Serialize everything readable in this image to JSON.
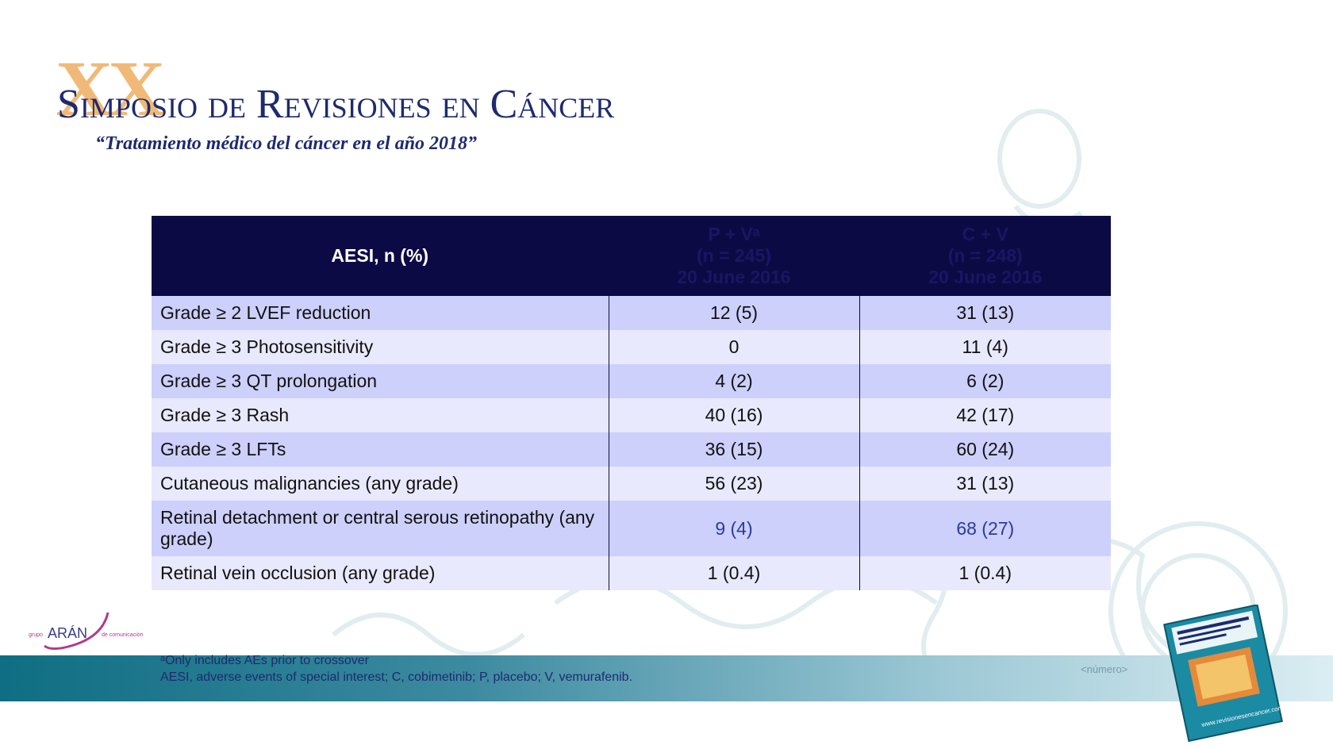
{
  "header": {
    "roman_numeral": "XX",
    "title": "Simposio de Revisiones en Cáncer",
    "subtitle": "“Tratamiento médico del cáncer en el año 2018”"
  },
  "table": {
    "headers": [
      {
        "lines": [
          "AESI, n (%)"
        ]
      },
      {
        "lines": [
          "P + Vᵃ",
          "(n = 245)",
          "20 June 2016"
        ]
      },
      {
        "lines": [
          "C + V",
          "(n = 248)",
          "20 June 2016"
        ]
      }
    ],
    "rows": [
      {
        "label": "Grade ≥ 2 LVEF reduction",
        "pv": "12 (5)",
        "cv": "31 (13)"
      },
      {
        "label": "Grade ≥ 3 Photosensitivity",
        "pv": "0",
        "cv": "11 (4)"
      },
      {
        "label": "Grade ≥ 3 QT prolongation",
        "pv": "4 (2)",
        "cv": "6 (2)"
      },
      {
        "label": "Grade ≥ 3 Rash",
        "pv": "40 (16)",
        "cv": "42 (17)"
      },
      {
        "label": "Grade ≥ 3 LFTs",
        "pv": "36 (15)",
        "cv": "60 (24)"
      },
      {
        "label": "Cutaneous malignancies (any grade)",
        "pv": "56 (23)",
        "cv": "31 (13)"
      },
      {
        "label": "Retinal detachment or central serous retinopathy (any grade)",
        "pv": "9 (4)",
        "cv": "68 (27)"
      },
      {
        "label": "Retinal vein occlusion (any grade)",
        "pv": "1 (0.4)",
        "cv": "1 (0.4)"
      }
    ]
  },
  "footnotes": {
    "line1": "ᵃOnly includes AEs prior to crossover",
    "line2": "AESI, adverse events of special interest; C, cobimetinib; P, placebo; V, vemurafenib."
  },
  "page_tag": "<número>",
  "logo": {
    "brand_prefix": "grupo",
    "brand_name": "ARÁN",
    "brand_suffix": "de comunicación"
  },
  "book_cover": {
    "url_text": "www.revisionesencancer.com"
  },
  "colors": {
    "header_bg": "#0c0a45",
    "row_dark": "#cdd0fb",
    "row_light": "#e8e9fc",
    "title": "#1e2a6e",
    "accent": "#f0b26a",
    "band": "#0f6e83"
  }
}
